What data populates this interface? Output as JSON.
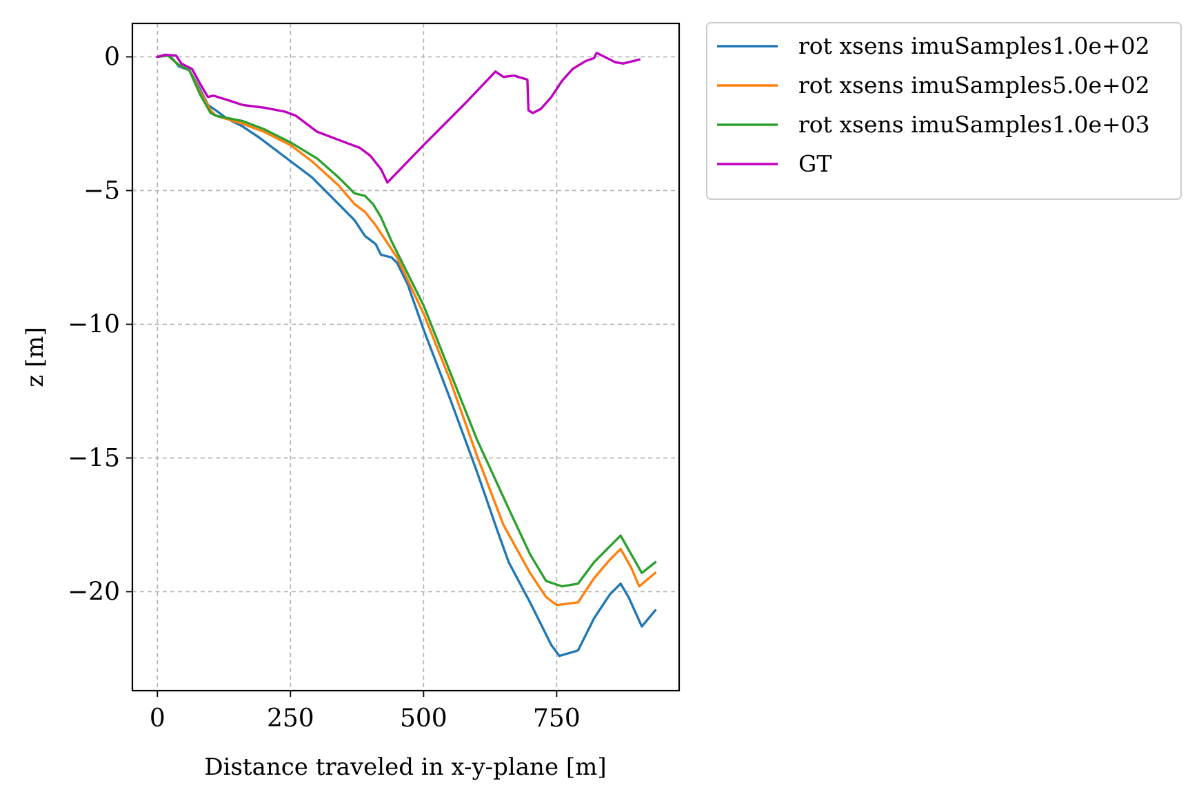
{
  "chart_data": {
    "type": "line",
    "title": "",
    "xlabel": "Distance traveled in x-y-plane [m]",
    "ylabel": "z [m]",
    "xlim": [
      -47,
      980
    ],
    "ylim": [
      -23.7,
      1.25
    ],
    "xticks": [
      0,
      250,
      500,
      750
    ],
    "xtick_labels": [
      "0",
      "250",
      "500",
      "750"
    ],
    "yticks": [
      0,
      -5,
      -10,
      -15,
      -20
    ],
    "ytick_labels": [
      "0",
      "−5",
      "−10",
      "−15",
      "−20"
    ],
    "grid": true,
    "legend_position": "outside-right-top",
    "series": [
      {
        "name": "rot xsens imuSamples1.0e+02",
        "color": "#1f77b4",
        "points": [
          [
            0,
            0
          ],
          [
            20,
            0.05
          ],
          [
            30,
            -0.1
          ],
          [
            40,
            -0.35
          ],
          [
            60,
            -0.5
          ],
          [
            80,
            -1.2
          ],
          [
            95,
            -1.8
          ],
          [
            110,
            -2.0
          ],
          [
            130,
            -2.3
          ],
          [
            160,
            -2.6
          ],
          [
            190,
            -3.0
          ],
          [
            230,
            -3.6
          ],
          [
            250,
            -3.9
          ],
          [
            290,
            -4.5
          ],
          [
            330,
            -5.3
          ],
          [
            370,
            -6.1
          ],
          [
            390,
            -6.7
          ],
          [
            410,
            -7.0
          ],
          [
            420,
            -7.4
          ],
          [
            440,
            -7.5
          ],
          [
            450,
            -7.7
          ],
          [
            470,
            -8.5
          ],
          [
            500,
            -10.2
          ],
          [
            550,
            -12.8
          ],
          [
            600,
            -15.5
          ],
          [
            640,
            -17.8
          ],
          [
            660,
            -18.9
          ],
          [
            700,
            -20.4
          ],
          [
            740,
            -22.0
          ],
          [
            755,
            -22.4
          ],
          [
            790,
            -22.2
          ],
          [
            820,
            -21.0
          ],
          [
            850,
            -20.1
          ],
          [
            870,
            -19.7
          ],
          [
            885,
            -20.2
          ],
          [
            910,
            -21.3
          ],
          [
            935,
            -20.7
          ]
        ]
      },
      {
        "name": "rot xsens imuSamples5.0e+02",
        "color": "#ff7f0e",
        "points": [
          [
            0,
            0
          ],
          [
            20,
            0.05
          ],
          [
            40,
            -0.3
          ],
          [
            60,
            -0.5
          ],
          [
            80,
            -1.3
          ],
          [
            100,
            -2.0
          ],
          [
            110,
            -2.2
          ],
          [
            160,
            -2.5
          ],
          [
            200,
            -2.8
          ],
          [
            250,
            -3.3
          ],
          [
            290,
            -3.9
          ],
          [
            340,
            -4.8
          ],
          [
            370,
            -5.5
          ],
          [
            390,
            -5.8
          ],
          [
            410,
            -6.3
          ],
          [
            420,
            -6.6
          ],
          [
            450,
            -7.5
          ],
          [
            500,
            -9.6
          ],
          [
            550,
            -12.1
          ],
          [
            600,
            -14.9
          ],
          [
            650,
            -17.5
          ],
          [
            700,
            -19.3
          ],
          [
            730,
            -20.2
          ],
          [
            750,
            -20.5
          ],
          [
            790,
            -20.4
          ],
          [
            820,
            -19.5
          ],
          [
            850,
            -18.8
          ],
          [
            870,
            -18.4
          ],
          [
            890,
            -19.1
          ],
          [
            905,
            -19.8
          ],
          [
            935,
            -19.3
          ]
        ]
      },
      {
        "name": "rot xsens imuSamples1.0e+03",
        "color": "#2ca02c",
        "points": [
          [
            0,
            0
          ],
          [
            20,
            0.05
          ],
          [
            40,
            -0.3
          ],
          [
            60,
            -0.5
          ],
          [
            80,
            -1.4
          ],
          [
            100,
            -2.1
          ],
          [
            110,
            -2.2
          ],
          [
            160,
            -2.4
          ],
          [
            200,
            -2.7
          ],
          [
            250,
            -3.2
          ],
          [
            300,
            -3.8
          ],
          [
            340,
            -4.5
          ],
          [
            370,
            -5.1
          ],
          [
            390,
            -5.2
          ],
          [
            405,
            -5.5
          ],
          [
            420,
            -6.0
          ],
          [
            440,
            -6.9
          ],
          [
            500,
            -9.3
          ],
          [
            550,
            -11.8
          ],
          [
            600,
            -14.3
          ],
          [
            660,
            -16.9
          ],
          [
            700,
            -18.6
          ],
          [
            730,
            -19.6
          ],
          [
            760,
            -19.8
          ],
          [
            790,
            -19.7
          ],
          [
            820,
            -18.9
          ],
          [
            850,
            -18.3
          ],
          [
            870,
            -17.9
          ],
          [
            890,
            -18.6
          ],
          [
            910,
            -19.3
          ],
          [
            935,
            -18.9
          ]
        ]
      },
      {
        "name": "GT",
        "color": "#bf00bf",
        "points": [
          [
            0,
            0
          ],
          [
            15,
            0.08
          ],
          [
            35,
            0.05
          ],
          [
            45,
            -0.25
          ],
          [
            65,
            -0.45
          ],
          [
            80,
            -1.0
          ],
          [
            95,
            -1.5
          ],
          [
            105,
            -1.45
          ],
          [
            130,
            -1.6
          ],
          [
            160,
            -1.8
          ],
          [
            200,
            -1.9
          ],
          [
            240,
            -2.05
          ],
          [
            260,
            -2.2
          ],
          [
            300,
            -2.8
          ],
          [
            340,
            -3.1
          ],
          [
            380,
            -3.4
          ],
          [
            400,
            -3.7
          ],
          [
            420,
            -4.2
          ],
          [
            432,
            -4.7
          ],
          [
            500,
            -3.3
          ],
          [
            580,
            -1.7
          ],
          [
            635,
            -0.55
          ],
          [
            650,
            -0.75
          ],
          [
            670,
            -0.7
          ],
          [
            695,
            -0.85
          ],
          [
            697,
            -2.0
          ],
          [
            705,
            -2.1
          ],
          [
            720,
            -1.95
          ],
          [
            740,
            -1.5
          ],
          [
            760,
            -0.9
          ],
          [
            780,
            -0.45
          ],
          [
            805,
            -0.15
          ],
          [
            820,
            -0.05
          ],
          [
            825,
            0.15
          ],
          [
            840,
            0.0
          ],
          [
            860,
            -0.2
          ],
          [
            875,
            -0.25
          ],
          [
            905,
            -0.1
          ]
        ]
      }
    ]
  }
}
